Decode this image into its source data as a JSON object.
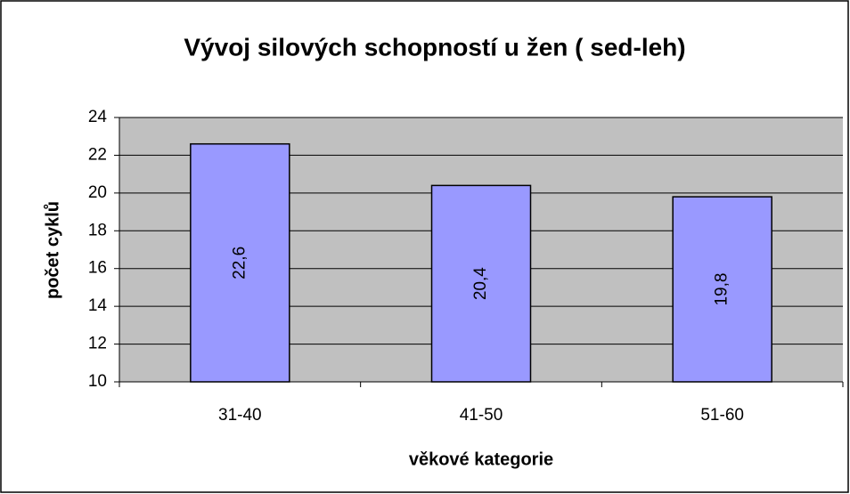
{
  "chart_data": {
    "type": "bar",
    "title": "Vývoj silových schopností u žen ( sed-leh)",
    "x_label": "věkové kategorie",
    "y_label": "počet cyklů",
    "categories": [
      "31-40",
      "41-50",
      "51-60"
    ],
    "values": [
      22.6,
      20.4,
      19.8
    ],
    "value_labels": [
      "22,6",
      "20,4",
      "19,8"
    ],
    "color": "#9999ff",
    "ylim": [
      10,
      24
    ],
    "yticks": [
      10,
      12,
      14,
      16,
      18,
      20,
      22,
      24
    ],
    "grid": true
  }
}
